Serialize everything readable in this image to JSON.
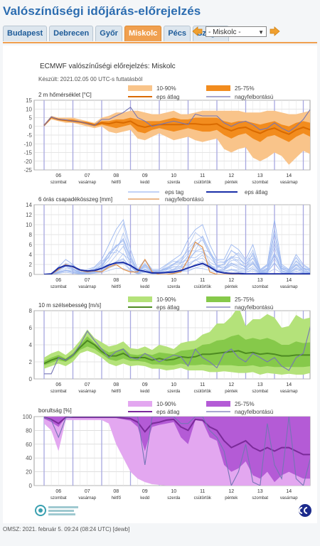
{
  "page": {
    "title": "Valószínűségi időjárás-előrejelzés"
  },
  "tabs": [
    {
      "label": "Budapest",
      "active": false
    },
    {
      "label": "Debrecen",
      "active": false
    },
    {
      "label": "Győr",
      "active": false
    },
    {
      "label": "Miskolc",
      "active": true
    },
    {
      "label": "Pécs",
      "active": false
    },
    {
      "label": "Szeged",
      "active": false
    }
  ],
  "location_select": {
    "value": "- Miskolc -"
  },
  "header": {
    "title": "ECMWF valószínűségi előrejelzés: Miskolc",
    "subtitle": "Készült: 2021.02.05 00 UTC-s futtatásból"
  },
  "day_labels": [
    {
      "num": "06",
      "name": "szombat"
    },
    {
      "num": "07",
      "name": "vasárnap"
    },
    {
      "num": "08",
      "name": "hétfő"
    },
    {
      "num": "09",
      "name": "kedd"
    },
    {
      "num": "10",
      "name": "szerda"
    },
    {
      "num": "11",
      "name": "csütörtök"
    },
    {
      "num": "12",
      "name": "péntek"
    },
    {
      "num": "13",
      "name": "szombat"
    },
    {
      "num": "14",
      "name": "vasárnap"
    }
  ],
  "weekend_days": [
    0,
    1,
    7,
    8
  ],
  "legend": {
    "band_outer": "10-90%",
    "band_inner": "25-75%",
    "mean": "eps átlag",
    "hires": "nagyfelbontású",
    "members": "eps tag"
  },
  "colors": {
    "temp_outer": "#f9c48a",
    "temp_inner": "#f28c1e",
    "temp_mean": "#d96a00",
    "wind_outer": "#b4e27a",
    "wind_inner": "#86c94a",
    "wind_mean": "#4d8a22",
    "cloud_outer": "#e3a7f0",
    "cloud_inner": "#b45bd6",
    "cloud_mean": "#7a2a99",
    "hires": "#7575b5",
    "precip_member": "#9db8f0",
    "precip_mean": "#1a2fa8",
    "precip_hires": "#e0904a",
    "grid": "#aaaaaa",
    "dayline": "#a7a7e0"
  },
  "chart_data": [
    {
      "type": "area",
      "title": "2 m hőmérséklet [°C]",
      "ylim": [
        -25,
        15
      ],
      "yticks": [
        15,
        10,
        5,
        0,
        -5,
        -10,
        -15,
        -20,
        -25
      ],
      "x": [
        0,
        0.25,
        0.5,
        0.75,
        1,
        1.25,
        1.5,
        1.75,
        2,
        2.25,
        2.5,
        2.75,
        3,
        3.25,
        3.5,
        3.75,
        4,
        4.25,
        4.5,
        4.75,
        5,
        5.25,
        5.5,
        5.75,
        6,
        6.25,
        6.5,
        6.75,
        7,
        7.25,
        7.5,
        7.75,
        8,
        8.25,
        8.5,
        8.75,
        9,
        9.25,
        9.5
      ],
      "series": [
        {
          "name": "10-90%",
          "low": [
            0,
            4,
            3,
            2,
            2,
            1,
            0,
            -1,
            0,
            -3,
            -4,
            -3,
            -2,
            -7,
            -8,
            -6,
            -4,
            -6,
            -8,
            -7,
            -6,
            -8,
            -9,
            -8,
            -7,
            -13,
            -15,
            -13,
            -12,
            -18,
            -20,
            -18,
            -15,
            -17,
            -22,
            -18,
            -14,
            -16,
            -11
          ],
          "high": [
            1,
            6,
            5,
            5,
            5,
            4,
            3,
            2,
            5,
            6,
            8,
            8,
            9,
            9,
            8,
            7,
            7,
            8,
            9,
            7,
            7,
            8,
            9,
            9,
            9,
            9,
            9,
            9,
            8,
            8,
            8,
            9,
            9,
            8,
            7,
            7,
            8,
            9,
            9
          ]
        },
        {
          "name": "25-75%",
          "low": [
            0,
            5,
            3.5,
            3,
            2.5,
            2,
            1,
            0,
            1,
            0,
            -1,
            0,
            1,
            -3,
            -4,
            -2,
            -1,
            -2,
            -3,
            -2,
            -1,
            -2,
            -3,
            -3,
            -2,
            -5,
            -7,
            -5,
            -4,
            -7,
            -9,
            -6,
            -5,
            -7,
            -9,
            -6,
            -4,
            -6,
            -5
          ],
          "high": [
            1,
            5.5,
            4.5,
            4,
            4,
            3,
            2.5,
            1.5,
            3,
            3,
            4,
            4,
            5,
            4,
            3,
            3,
            3,
            4,
            5,
            4,
            4,
            5,
            5,
            5,
            5,
            3,
            2,
            3,
            3,
            2,
            1,
            2,
            3,
            1,
            0,
            2,
            3,
            2,
            1
          ]
        },
        {
          "name": "eps átlag",
          "values": [
            0.5,
            5.2,
            4,
            3.5,
            3,
            2.5,
            1.8,
            0.8,
            2,
            1.5,
            2.5,
            2,
            3,
            0.5,
            -0.5,
            0.5,
            1,
            1,
            1,
            1,
            1.5,
            1.5,
            1,
            1,
            1.5,
            -1,
            -2.5,
            -1,
            -0.5,
            -2.5,
            -4,
            -2,
            -1,
            -3,
            -4.5,
            -2,
            -0.5,
            -2,
            -2
          ]
        },
        {
          "name": "nagyfelbontású",
          "values": [
            0.5,
            5.5,
            4,
            3.8,
            3,
            2.7,
            1.5,
            0.5,
            4,
            4,
            6,
            8,
            11,
            5,
            3,
            0,
            1,
            2,
            3,
            2,
            1,
            7,
            6,
            6,
            6,
            2,
            0,
            2,
            3,
            1,
            -2,
            -1,
            2,
            -1,
            -3,
            0,
            4,
            10,
            4
          ]
        }
      ]
    },
    {
      "type": "line",
      "title": "6 órás csapadékösszeg [mm]",
      "ylim": [
        0,
        14
      ],
      "yticks": [
        14,
        12,
        10,
        8,
        6,
        4,
        2,
        0
      ],
      "x": [
        0,
        0.25,
        0.5,
        0.75,
        1,
        1.25,
        1.5,
        1.75,
        2,
        2.25,
        2.5,
        2.75,
        3,
        3.25,
        3.5,
        3.75,
        4,
        4.25,
        4.5,
        4.75,
        5,
        5.25,
        5.5,
        5.75,
        6,
        6.25,
        6.5,
        6.75,
        7,
        7.25,
        7.5,
        7.75,
        8,
        8.25,
        8.5,
        8.75,
        9,
        9.25,
        9.5
      ],
      "series": [
        {
          "name": "eps tag (max)",
          "values": [
            0,
            0,
            1.5,
            3,
            2,
            0.5,
            1,
            1.5,
            3,
            6,
            9,
            11,
            5,
            1,
            3,
            1,
            1,
            2,
            3,
            4,
            7,
            9,
            10,
            6,
            3,
            3,
            6,
            5,
            3,
            6,
            1,
            2,
            11,
            2,
            1,
            4,
            2,
            1,
            1
          ]
        },
        {
          "name": "eps átlag",
          "values": [
            0,
            0.1,
            1.3,
            1.8,
            1.6,
            0.9,
            0.7,
            0.8,
            1.2,
            1.9,
            2.3,
            2.4,
            1.8,
            0.9,
            0.6,
            0.3,
            0.3,
            0.4,
            0.5,
            0.8,
            1.3,
            1.8,
            2.2,
            1.5,
            0.6,
            0.3,
            0.2,
            0.2,
            0.1,
            0.1,
            0.1,
            0.1,
            0.1,
            0.1,
            0.1,
            0.1,
            0.1,
            0.1,
            0.1
          ]
        },
        {
          "name": "nagyfelbontású",
          "values": [
            0,
            0,
            1,
            2,
            1.5,
            0.8,
            0.5,
            0.7,
            0.5,
            1.5,
            2,
            1,
            0.5,
            0.5,
            3,
            0.5,
            0,
            0,
            0.2,
            0.5,
            3,
            6.5,
            5.5,
            0.5,
            0,
            0,
            0,
            0,
            0,
            0,
            0,
            0,
            0,
            0,
            0,
            0,
            0,
            0,
            0
          ]
        }
      ]
    },
    {
      "type": "area",
      "title": "10 m szélsebesség [m/s]",
      "ylim": [
        0,
        8
      ],
      "yticks": [
        8,
        6,
        4,
        2,
        0
      ],
      "x": [
        0,
        0.25,
        0.5,
        0.75,
        1,
        1.25,
        1.5,
        1.75,
        2,
        2.25,
        2.5,
        2.75,
        3,
        3.25,
        3.5,
        3.75,
        4,
        4.25,
        4.5,
        4.75,
        5,
        5.25,
        5.5,
        5.75,
        6,
        6.25,
        6.5,
        6.75,
        7,
        7.25,
        7.5,
        7.75,
        8,
        8.25,
        8.5,
        8.75,
        9,
        9.25,
        9.5
      ],
      "series": [
        {
          "name": "10-90%",
          "low": [
            1.2,
            1.5,
            1.8,
            1.5,
            2,
            3,
            3.3,
            3,
            2.5,
            1.8,
            1.5,
            1.8,
            1.5,
            1.6,
            1.5,
            1.2,
            1.2,
            1,
            1.1,
            1.3,
            1,
            1,
            1,
            0.8,
            0.8,
            0.9,
            0.8,
            0.7,
            0.7,
            0.8,
            0.5,
            0.7,
            0.6,
            0.5,
            0.6,
            0.5,
            0.5,
            0.7,
            0.6
          ],
          "high": [
            2.5,
            3,
            3.3,
            2.8,
            3.5,
            4.5,
            5.8,
            4.8,
            4.3,
            3.8,
            4,
            4.4,
            3.6,
            3.5,
            3.8,
            3.4,
            4,
            3.8,
            3.5,
            4.2,
            4.4,
            4.5,
            5.2,
            5.5,
            6.5,
            6.5,
            7.3,
            8.5,
            6.2,
            7,
            7,
            7.6,
            7.2,
            6,
            6.2,
            7.5,
            7,
            7.2,
            7.2
          ]
        },
        {
          "name": "25-75%",
          "low": [
            1.6,
            1.9,
            2.2,
            2,
            2.5,
            3.4,
            3.8,
            3.5,
            2.9,
            2.3,
            2.1,
            2.4,
            2.1,
            2.1,
            2,
            1.7,
            1.7,
            1.6,
            1.6,
            1.8,
            1.6,
            1.6,
            1.7,
            1.6,
            1.6,
            1.6,
            1.6,
            1.5,
            1.5,
            1.6,
            1.4,
            1.5,
            1.4,
            1.4,
            1.4,
            1.4,
            1.4,
            1.5,
            1.4
          ],
          "high": [
            2.1,
            2.5,
            2.8,
            2.4,
            3,
            4,
            5,
            4.2,
            3.6,
            3.1,
            3.3,
            3.6,
            2.9,
            2.8,
            3,
            2.8,
            3.1,
            3,
            2.9,
            3.3,
            3.4,
            3.5,
            4,
            4.1,
            4.5,
            4.6,
            5,
            5.2,
            4.6,
            4.8,
            4.6,
            4.8,
            4.5,
            4,
            4,
            4.4,
            4.2,
            4.3,
            4.2
          ]
        },
        {
          "name": "eps átlag",
          "values": [
            1.8,
            2.2,
            2.5,
            2.2,
            2.8,
            3.7,
            4.5,
            4,
            3.2,
            2.7,
            2.7,
            3,
            2.5,
            2.5,
            2.5,
            2.2,
            2.4,
            2.2,
            2.3,
            2.6,
            2.5,
            2.6,
            2.9,
            2.9,
            3,
            3.1,
            3.2,
            3.3,
            3,
            3.1,
            2.9,
            3,
            2.9,
            2.7,
            2.7,
            2.8,
            2.8,
            2.8,
            2.8
          ]
        },
        {
          "name": "nagyfelbontású",
          "values": [
            0.6,
            0.6,
            2.5,
            2.2,
            2.8,
            4,
            5.6,
            4.5,
            3.5,
            2.5,
            3.2,
            3.5,
            2.5,
            2.3,
            3,
            2.5,
            2,
            2.4,
            2.8,
            2.6,
            1.5,
            3.5,
            2.5,
            2,
            1.3,
            3,
            3.5,
            2.5,
            2,
            3,
            2.5,
            2,
            2.5,
            1.5,
            1,
            2.5,
            3,
            6.2,
            4
          ]
        }
      ]
    },
    {
      "type": "area",
      "title": "borultság [%]",
      "ylim": [
        0,
        100
      ],
      "yticks": [
        100,
        80,
        60,
        40,
        20,
        0
      ],
      "x": [
        0,
        0.25,
        0.5,
        0.75,
        1,
        1.25,
        1.5,
        1.75,
        2,
        2.25,
        2.5,
        2.75,
        3,
        3.25,
        3.5,
        3.75,
        4,
        4.25,
        4.5,
        4.75,
        5,
        5.25,
        5.5,
        5.75,
        6,
        6.25,
        6.5,
        6.75,
        7,
        7.25,
        7.5,
        7.75,
        8,
        8.25,
        8.5,
        8.75,
        9,
        9.25,
        9.5
      ],
      "series": [
        {
          "name": "10-90%",
          "low": [
            90,
            80,
            50,
            95,
            95,
            95,
            95,
            95,
            95,
            90,
            60,
            40,
            20,
            10,
            5,
            2,
            1,
            0,
            0,
            0,
            0,
            0,
            0,
            0,
            0,
            0,
            0,
            0,
            0,
            0,
            0,
            0,
            0,
            0,
            0,
            0,
            0,
            0,
            0
          ],
          "high": [
            100,
            100,
            100,
            100,
            100,
            100,
            100,
            100,
            100,
            100,
            100,
            100,
            100,
            100,
            100,
            100,
            100,
            100,
            100,
            100,
            100,
            100,
            100,
            100,
            100,
            100,
            100,
            100,
            100,
            100,
            100,
            100,
            100,
            100,
            100,
            100,
            100,
            100,
            100
          ]
        },
        {
          "name": "25-75%",
          "low": [
            97,
            92,
            85,
            99,
            99,
            99,
            99,
            99,
            99,
            99,
            98,
            96,
            94,
            85,
            50,
            85,
            88,
            90,
            92,
            70,
            60,
            95,
            93,
            70,
            65,
            30,
            20,
            25,
            35,
            15,
            10,
            20,
            5,
            15,
            20,
            15,
            10,
            10,
            5
          ],
          "high": [
            100,
            100,
            100,
            100,
            100,
            100,
            100,
            100,
            100,
            100,
            100,
            100,
            100,
            100,
            100,
            100,
            100,
            100,
            100,
            100,
            100,
            100,
            100,
            100,
            100,
            100,
            100,
            100,
            100,
            100,
            100,
            100,
            100,
            100,
            100,
            100,
            100,
            100,
            100
          ]
        },
        {
          "name": "eps átlag",
          "values": [
            99,
            96,
            90,
            99,
            99,
            99,
            99,
            99,
            99,
            99,
            99,
            98,
            97,
            92,
            78,
            90,
            92,
            95,
            96,
            85,
            80,
            96,
            95,
            85,
            80,
            65,
            55,
            60,
            65,
            55,
            50,
            55,
            50,
            55,
            55,
            50,
            45,
            45,
            40
          ]
        },
        {
          "name": "nagyfelbontású",
          "values": [
            99,
            95,
            70,
            98,
            100,
            100,
            100,
            100,
            100,
            100,
            100,
            100,
            100,
            100,
            30,
            100,
            100,
            100,
            100,
            90,
            90,
            100,
            100,
            80,
            70,
            50,
            0,
            20,
            60,
            5,
            0,
            90,
            30,
            10,
            100,
            10,
            0,
            40,
            5
          ]
        }
      ]
    }
  ],
  "logos": {
    "left": "omsz-logo",
    "right": "ecmwf-logo"
  },
  "footer": {
    "text": "OMSZ: 2021. február 5. 09:24 (08:24  UTC)  [dewb]"
  }
}
